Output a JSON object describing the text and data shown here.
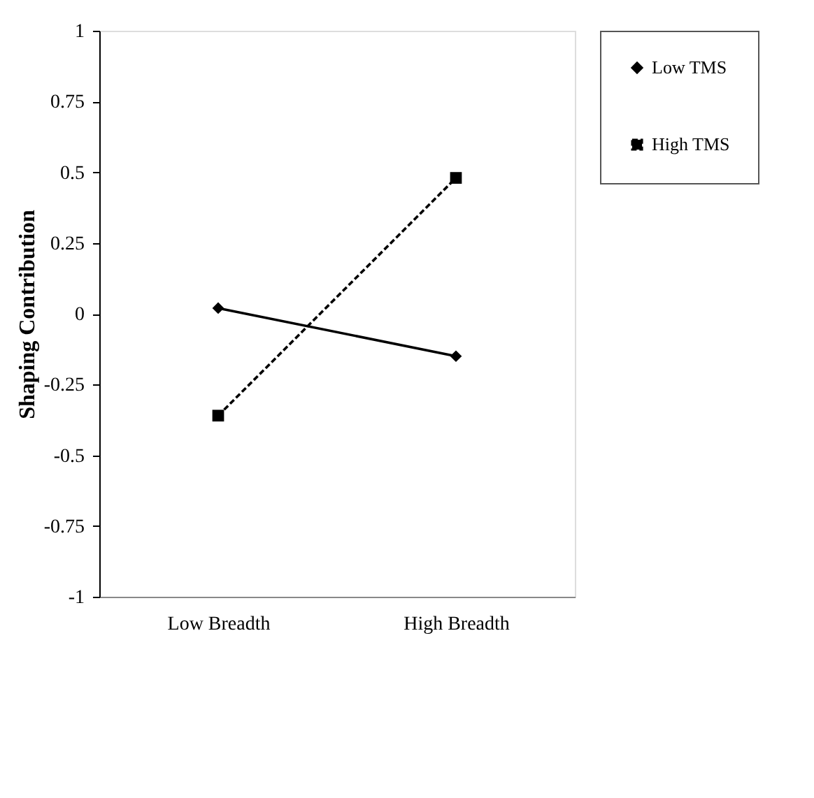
{
  "chart_data": {
    "type": "line",
    "ylabel": "Shaping Contribution",
    "categories": [
      "Low Breadth",
      "High Breadth"
    ],
    "series": [
      {
        "name": "Low TMS",
        "color": "#000000",
        "values": [
          0.02,
          -0.15
        ],
        "marker": "diamond",
        "line_style": "solid"
      },
      {
        "name": "High TMS",
        "color": "#000000",
        "values": [
          -0.36,
          0.48
        ],
        "marker": "square",
        "line_style": "dashed"
      }
    ],
    "ylim": [
      -1,
      1
    ],
    "yticks": [
      -1,
      -0.75,
      -0.5,
      -0.25,
      0,
      0.25,
      0.5,
      0.75,
      1
    ],
    "grid": false,
    "legend": "right"
  }
}
